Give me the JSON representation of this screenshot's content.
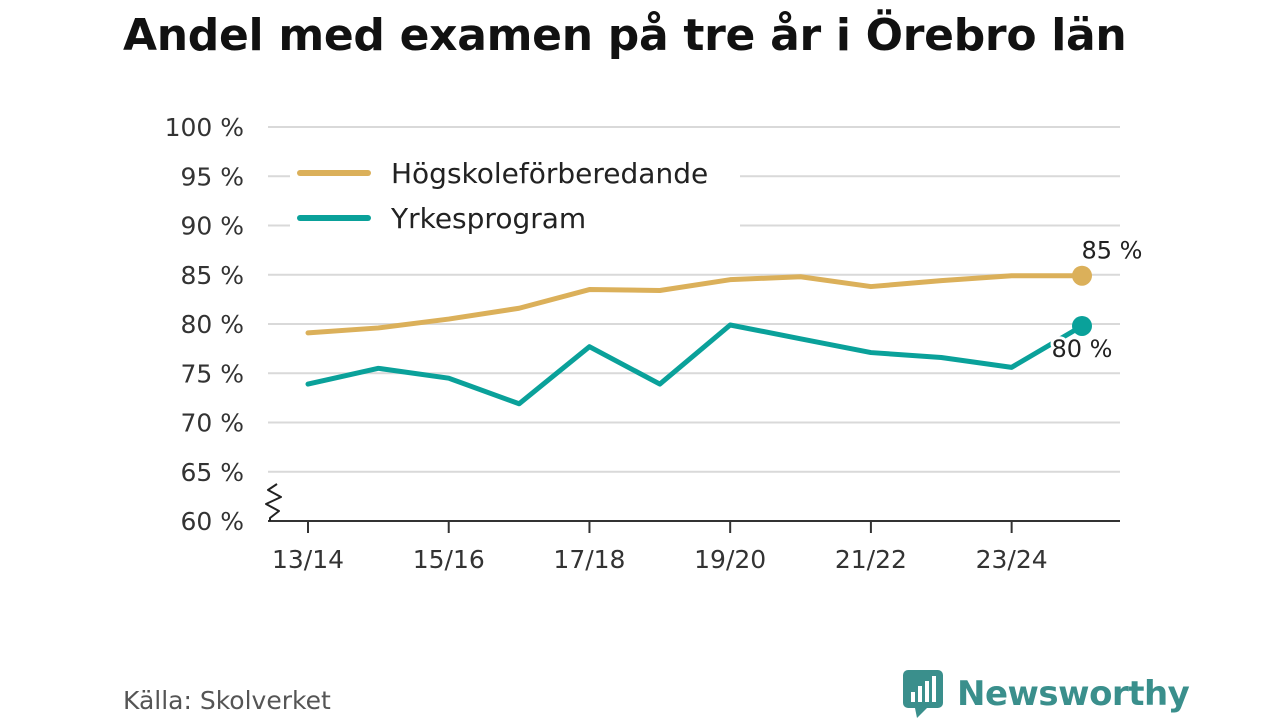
{
  "title": "Andel med examen på tre år i Örebro län",
  "source": "Källa: Skolverket",
  "brand": {
    "name": "Newsworthy",
    "icon": "newsworthy-logo-icon",
    "color": "#3a8f8c"
  },
  "chart_data": {
    "type": "line",
    "title": "Andel med examen på tre år i Örebro län",
    "xlabel": "",
    "ylabel": "",
    "ylim": [
      60,
      100
    ],
    "y_ticks": [
      60,
      65,
      70,
      75,
      80,
      85,
      90,
      95,
      100
    ],
    "y_tick_labels": [
      "60 %",
      "65 %",
      "70 %",
      "75 %",
      "80 %",
      "85 %",
      "90 %",
      "95 %",
      "100 %"
    ],
    "y_axis_break": true,
    "grid": true,
    "legend_position": "top-left",
    "categories": [
      "13/14",
      "14/15",
      "15/16",
      "16/17",
      "17/18",
      "18/19",
      "19/20",
      "20/21",
      "21/22",
      "22/23",
      "23/24",
      "24/25"
    ],
    "x_tick_labels": [
      "13/14",
      "15/16",
      "17/18",
      "19/20",
      "21/22",
      "23/24"
    ],
    "series": [
      {
        "name": "Högskoleförberedande",
        "color": "#dbb05a",
        "values": [
          79.1,
          79.6,
          80.5,
          81.6,
          83.5,
          83.4,
          84.5,
          84.8,
          83.8,
          84.4,
          84.9,
          84.9
        ],
        "end_label": "85 %"
      },
      {
        "name": "Yrkesprogram",
        "color": "#0aa19a",
        "values": [
          73.9,
          75.5,
          74.5,
          71.9,
          77.7,
          73.9,
          79.9,
          78.5,
          77.1,
          76.6,
          75.6,
          79.8
        ],
        "end_label": "80 %"
      }
    ]
  }
}
